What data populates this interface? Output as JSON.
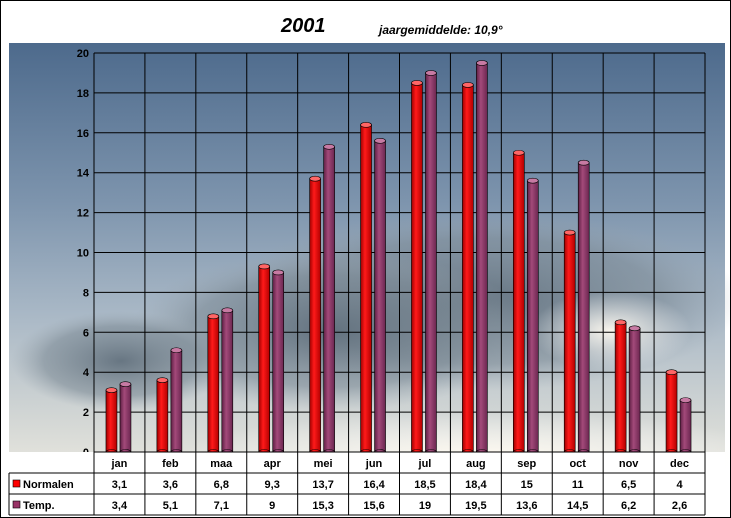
{
  "chart_data": {
    "type": "bar",
    "title": "2001",
    "subtitle": "jaargemiddelde: 10,9°",
    "categories": [
      "jan",
      "feb",
      "maa",
      "apr",
      "mei",
      "jun",
      "jul",
      "aug",
      "sep",
      "oct",
      "nov",
      "dec"
    ],
    "series": [
      {
        "name": "Normalen",
        "color": "#ff0000",
        "values": [
          3.1,
          3.6,
          6.8,
          9.3,
          13.7,
          16.4,
          18.5,
          18.4,
          15,
          11,
          6.5,
          4
        ],
        "labels": [
          "3,1",
          "3,6",
          "6,8",
          "9,3",
          "13,7",
          "16,4",
          "18,5",
          "18,4",
          "15",
          "11",
          "6,5",
          "4"
        ]
      },
      {
        "name": "Temp.",
        "color": "#993366",
        "values": [
          3.4,
          5.1,
          7.1,
          9,
          15.3,
          15.6,
          19,
          19.5,
          13.6,
          14.5,
          6.2,
          2.6
        ],
        "labels": [
          "3,4",
          "5,1",
          "7,1",
          "9",
          "15,3",
          "15,6",
          "19",
          "19,5",
          "13,6",
          "14,5",
          "6,2",
          "2,6"
        ]
      }
    ],
    "ylim": [
      0,
      20
    ],
    "yticks": [
      "0",
      "2",
      "4",
      "6",
      "8",
      "10",
      "12",
      "14",
      "16",
      "18",
      "20"
    ],
    "grid": true,
    "legend": "data-table",
    "background": "sky-photo"
  }
}
